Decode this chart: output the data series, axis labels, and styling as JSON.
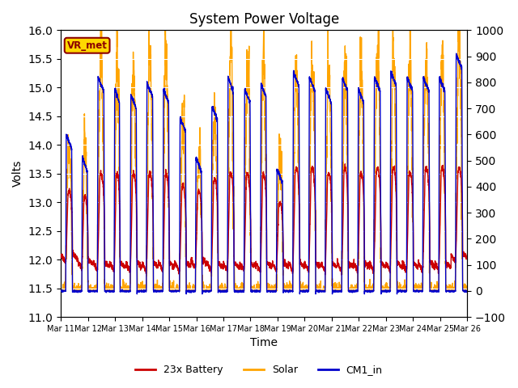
{
  "title": "System Power Voltage",
  "xlabel": "Time",
  "ylabel_left": "Volts",
  "ylim_left": [
    11.0,
    16.0
  ],
  "ylim_right": [
    -100,
    1000
  ],
  "yticks_left": [
    11.0,
    11.5,
    12.0,
    12.5,
    13.0,
    13.5,
    14.0,
    14.5,
    15.0,
    15.5,
    16.0
  ],
  "yticks_right": [
    -100,
    0,
    100,
    200,
    300,
    400,
    500,
    600,
    700,
    800,
    900,
    1000
  ],
  "x_tick_labels": [
    "Mar 11",
    "Mar 12",
    "Mar 13",
    "Mar 14",
    "Mar 15",
    "Mar 16",
    "Mar 17",
    "Mar 18",
    "Mar 19",
    "Mar 20",
    "Mar 21",
    "Mar 22",
    "Mar 23",
    "Mar 24",
    "Mar 25",
    "Mar 26"
  ],
  "color_battery": "#cc0000",
  "color_solar": "#ffa500",
  "color_cm1": "#0000cc",
  "legend_labels": [
    "23x Battery",
    "Solar",
    "CM1_in"
  ],
  "vr_met_label": "VR_met",
  "background_color": "#ffffff",
  "plot_bg_color": "#dcdcdc",
  "grid_color": "#ffffff",
  "linewidth": 1.0,
  "n_days": 25,
  "pts_per_day": 144,
  "solar_day_start": [
    0.3,
    0.29,
    0.25,
    0.28,
    0.27,
    0.26,
    0.28,
    0.3,
    0.28,
    0.26,
    0.25,
    0.27,
    0.28,
    0.26,
    0.27,
    0.25,
    0.26,
    0.28,
    0.27,
    0.25,
    0.26,
    0.27,
    0.26,
    0.25,
    0.28
  ],
  "solar_day_end": [
    0.72,
    0.68,
    0.7,
    0.65,
    0.69,
    0.7,
    0.68,
    0.72,
    0.7,
    0.68,
    0.66,
    0.69,
    0.67,
    0.69,
    0.7,
    0.68,
    0.7,
    0.69,
    0.68,
    0.7,
    0.68,
    0.69,
    0.7,
    0.68,
    0.72
  ],
  "solar_peak_w": [
    550,
    500,
    900,
    860,
    850,
    910,
    870,
    550,
    490,
    640,
    880,
    850,
    870,
    480,
    860,
    870,
    840,
    860,
    850,
    880,
    870,
    860,
    880,
    870,
    960
  ],
  "batt_night_base": [
    11.95,
    11.85,
    11.8,
    11.8,
    11.8,
    11.8,
    11.8,
    11.8,
    11.85,
    11.8,
    11.8,
    11.8,
    11.8,
    11.8,
    11.8,
    11.8,
    11.8,
    11.8,
    11.8,
    11.8,
    11.8,
    11.8,
    11.8,
    11.8,
    11.95
  ],
  "batt_day_peak": [
    13.2,
    13.1,
    13.5,
    13.5,
    13.5,
    13.5,
    13.5,
    13.3,
    13.2,
    13.4,
    13.5,
    13.5,
    13.5,
    13.0,
    13.6,
    13.6,
    13.5,
    13.6,
    13.5,
    13.6,
    13.6,
    13.5,
    13.6,
    13.6,
    13.6
  ],
  "cm1_day_peak": [
    14.2,
    13.8,
    15.2,
    15.0,
    14.9,
    15.1,
    15.0,
    14.5,
    13.8,
    14.7,
    15.2,
    15.0,
    15.1,
    13.6,
    15.3,
    15.2,
    15.0,
    15.2,
    15.0,
    15.2,
    15.3,
    15.2,
    15.2,
    15.2,
    15.6
  ]
}
